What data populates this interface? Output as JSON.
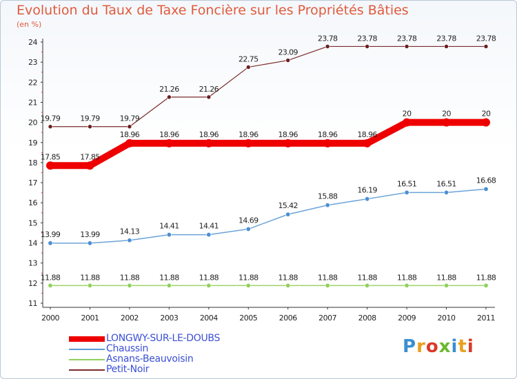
{
  "title": "Evolution du Taux de Taxe Foncière sur les Propriétés Bâties",
  "unit_label": "(en %)",
  "logo_text": "Proxiti",
  "chart_data": {
    "type": "line",
    "title": "Evolution du Taux de Taxe Foncière sur les Propriétés Bâties",
    "ylabel": "(en %)",
    "xlabel": "",
    "x": [
      "2000",
      "2001",
      "2002",
      "2003",
      "2004",
      "2005",
      "2006",
      "2007",
      "2008",
      "2009",
      "2010",
      "2011"
    ],
    "ylim": [
      11,
      24
    ],
    "yticks": [
      "11",
      "12",
      "13",
      "14",
      "15",
      "16",
      "17",
      "18",
      "19",
      "20",
      "21",
      "22",
      "23",
      "24"
    ],
    "grid": false,
    "legend_position": "bottom-left",
    "series": [
      {
        "name": "LONGWY-SUR-LE-DOUBS",
        "color": "#ee0000",
        "values": [
          17.85,
          17.85,
          18.96,
          18.96,
          18.96,
          18.96,
          18.96,
          18.96,
          18.96,
          20,
          20,
          20
        ],
        "labels": [
          "17.85",
          "17.85",
          "18.96",
          "18.96",
          "18.96",
          "18.96",
          "18.96",
          "18.96",
          "18.96",
          "20",
          "20",
          "20"
        ]
      },
      {
        "name": "Chaussin",
        "color": "#5b9bd5",
        "values": [
          13.99,
          13.99,
          14.13,
          14.41,
          14.41,
          14.69,
          15.42,
          15.88,
          16.19,
          16.51,
          16.51,
          16.68
        ],
        "labels": [
          "13.99",
          "13.99",
          "14.13",
          "14.41",
          "14.41",
          "14.69",
          "15.42",
          "15.88",
          "16.19",
          "16.51",
          "16.51",
          "16.68"
        ]
      },
      {
        "name": "Asnans-Beauvoisin",
        "color": "#8fd05a",
        "values": [
          11.88,
          11.88,
          11.88,
          11.88,
          11.88,
          11.88,
          11.88,
          11.88,
          11.88,
          11.88,
          11.88,
          11.88
        ],
        "labels": [
          "11.88",
          "11.88",
          "11.88",
          "11.88",
          "11.88",
          "11.88",
          "11.88",
          "11.88",
          "11.88",
          "11.88",
          "11.88",
          "11.88"
        ]
      },
      {
        "name": "Petit-Noir",
        "color": "#7a2a2a",
        "values": [
          19.79,
          19.79,
          19.79,
          21.26,
          21.26,
          22.75,
          23.09,
          23.78,
          23.78,
          23.78,
          23.78,
          23.78
        ],
        "labels": [
          "19.79",
          "19.79",
          "19.79",
          "21.26",
          "21.26",
          "22.75",
          "23.09",
          "23.78",
          "23.78",
          "23.78",
          "23.78",
          "23.78"
        ]
      }
    ]
  }
}
